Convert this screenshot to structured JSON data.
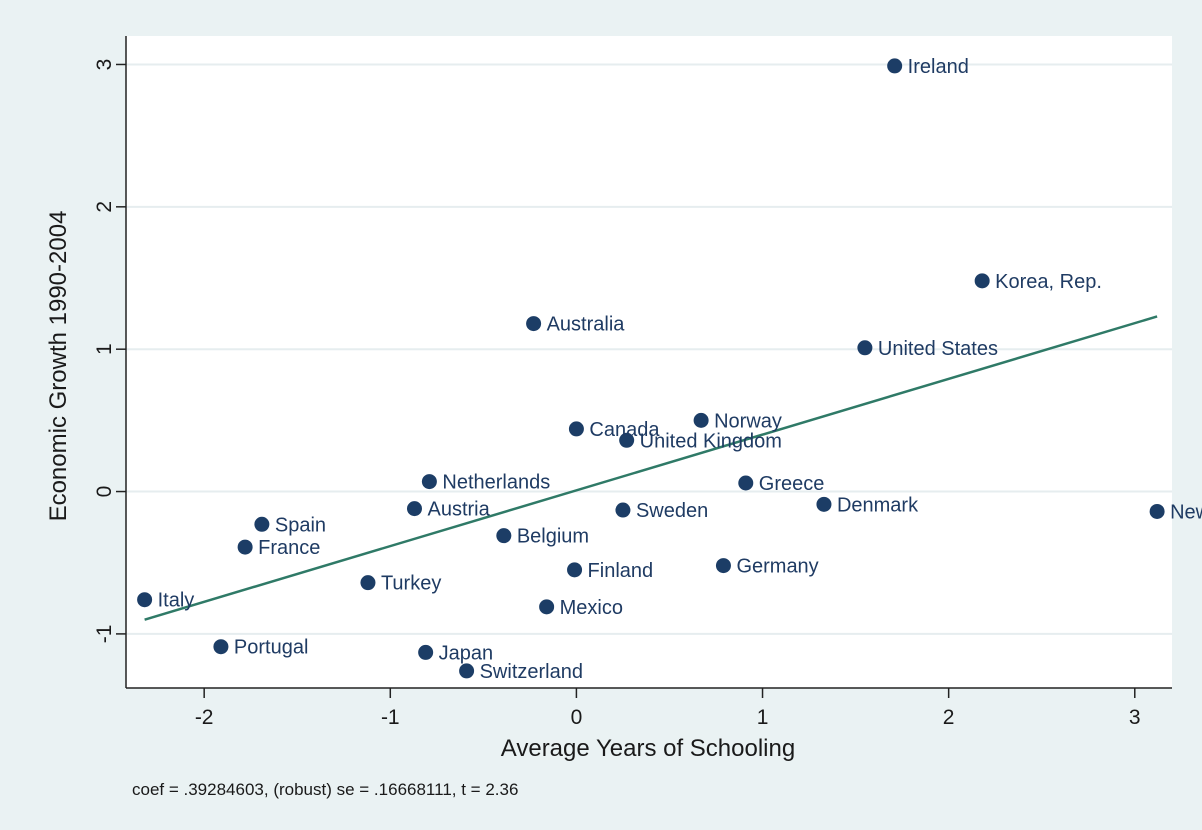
{
  "chart_data": {
    "type": "scatter",
    "title": "",
    "xlabel": "Average Years of Schooling",
    "ylabel": "Economic Growth 1990-2004",
    "note": "coef = .39284603, (robust) se = .16668111, t = 2.36",
    "xlim": [
      -2.42,
      3.2
    ],
    "ylim": [
      -1.38,
      3.2
    ],
    "xticks": [
      -2,
      -1,
      0,
      1,
      2,
      3
    ],
    "yticks": [
      -1,
      0,
      1,
      2,
      3
    ],
    "grid": true,
    "colors": {
      "point": "#1c3d66",
      "fit_line": "#2f7a67",
      "label": "#1f3b63",
      "plot_bg": "#ffffff",
      "outer_bg": "#eaf2f3"
    },
    "fit_line": {
      "x": [
        -2.32,
        3.12
      ],
      "y": [
        -0.9,
        1.23
      ]
    },
    "points": [
      {
        "label": "Ireland",
        "x": 1.71,
        "y": 2.99
      },
      {
        "label": "Korea, Rep.",
        "x": 2.18,
        "y": 1.48
      },
      {
        "label": "Australia",
        "x": -0.23,
        "y": 1.18
      },
      {
        "label": "United States",
        "x": 1.55,
        "y": 1.01
      },
      {
        "label": "Norway",
        "x": 0.67,
        "y": 0.5
      },
      {
        "label": "Canada",
        "x": 0.0,
        "y": 0.44
      },
      {
        "label": "United Kingdom",
        "x": 0.27,
        "y": 0.36
      },
      {
        "label": "Netherlands",
        "x": -0.79,
        "y": 0.07
      },
      {
        "label": "Greece",
        "x": 0.91,
        "y": 0.06
      },
      {
        "label": "Denmark",
        "x": 1.33,
        "y": -0.09
      },
      {
        "label": "Austria",
        "x": -0.87,
        "y": -0.12
      },
      {
        "label": "Sweden",
        "x": 0.25,
        "y": -0.13
      },
      {
        "label": "New",
        "x": 3.12,
        "y": -0.14
      },
      {
        "label": "Spain",
        "x": -1.69,
        "y": -0.23
      },
      {
        "label": "Belgium",
        "x": -0.39,
        "y": -0.31
      },
      {
        "label": "France",
        "x": -1.78,
        "y": -0.39
      },
      {
        "label": "Germany",
        "x": 0.79,
        "y": -0.52
      },
      {
        "label": "Finland",
        "x": -0.01,
        "y": -0.55
      },
      {
        "label": "Turkey",
        "x": -1.12,
        "y": -0.64
      },
      {
        "label": "Italy",
        "x": -2.32,
        "y": -0.76
      },
      {
        "label": "Mexico",
        "x": -0.16,
        "y": -0.81
      },
      {
        "label": "Portugal",
        "x": -1.91,
        "y": -1.09
      },
      {
        "label": "Japan",
        "x": -0.81,
        "y": -1.13
      },
      {
        "label": "Switzerland",
        "x": -0.59,
        "y": -1.26
      }
    ]
  }
}
